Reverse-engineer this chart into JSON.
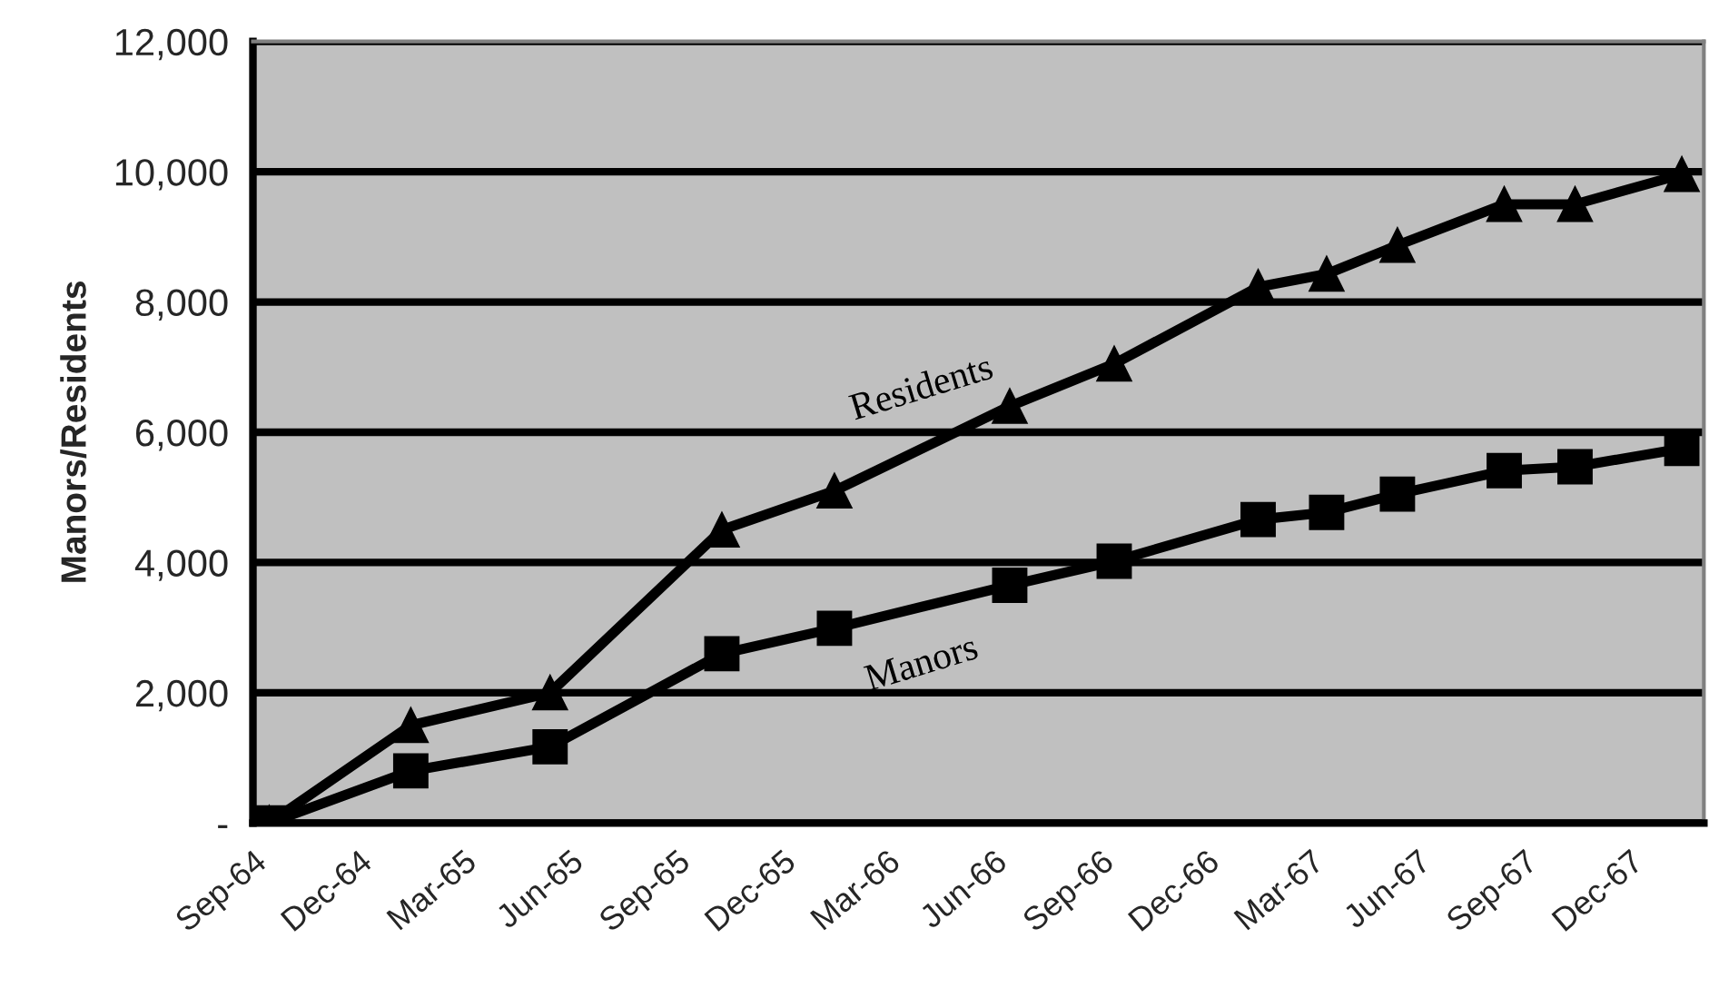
{
  "chart_data": {
    "type": "line",
    "ylabel": "Manors/Residents",
    "xlim": [
      "1964-09-01",
      "1968-02-03"
    ],
    "xticks": [
      {
        "value": "1964-09-01",
        "label": "Sep-64"
      },
      {
        "value": "1964-12-01",
        "label": "Dec-64"
      },
      {
        "value": "1965-03-01",
        "label": "Mar-65"
      },
      {
        "value": "1965-06-01",
        "label": "Jun-65"
      },
      {
        "value": "1965-09-01",
        "label": "Sep-65"
      },
      {
        "value": "1965-12-01",
        "label": "Dec-65"
      },
      {
        "value": "1966-03-01",
        "label": "Mar-66"
      },
      {
        "value": "1966-06-01",
        "label": "Jun-66"
      },
      {
        "value": "1966-09-01",
        "label": "Sep-66"
      },
      {
        "value": "1966-12-01",
        "label": "Dec-66"
      },
      {
        "value": "1967-03-01",
        "label": "Mar-67"
      },
      {
        "value": "1967-06-01",
        "label": "Jun-67"
      },
      {
        "value": "1967-09-01",
        "label": "Sep-67"
      },
      {
        "value": "1967-12-01",
        "label": "Dec-67"
      }
    ],
    "ylim": [
      0,
      12000
    ],
    "yticks": [
      {
        "value": 0,
        "label": "-"
      },
      {
        "value": 2000,
        "label": "2,000"
      },
      {
        "value": 4000,
        "label": "4,000"
      },
      {
        "value": 6000,
        "label": "6,000"
      },
      {
        "value": 8000,
        "label": "8,000"
      },
      {
        "value": 10000,
        "label": "10,000"
      },
      {
        "value": 12000,
        "label": "12,000"
      }
    ],
    "x": [
      "1964-09-15",
      "1965-01-15",
      "1965-05-15",
      "1965-10-10",
      "1966-01-15",
      "1966-06-15",
      "1966-09-13",
      "1967-01-15",
      "1967-03-15",
      "1967-05-15",
      "1967-08-15",
      "1967-10-15",
      "1968-01-15"
    ],
    "grid": "y",
    "legend": false,
    "line_style": "solid",
    "series": [
      {
        "name": "Residents",
        "color": "#000000",
        "marker": "triangle",
        "values": [
          0,
          1500,
          2000,
          4500,
          5100,
          6400,
          7050,
          8230,
          8430,
          8870,
          9500,
          9500,
          9960
        ]
      },
      {
        "name": "Manors",
        "color": "#000000",
        "marker": "square",
        "values": [
          0,
          800,
          1170,
          2600,
          2990,
          3650,
          4020,
          4660,
          4770,
          5050,
          5410,
          5470,
          5750
        ]
      }
    ]
  }
}
